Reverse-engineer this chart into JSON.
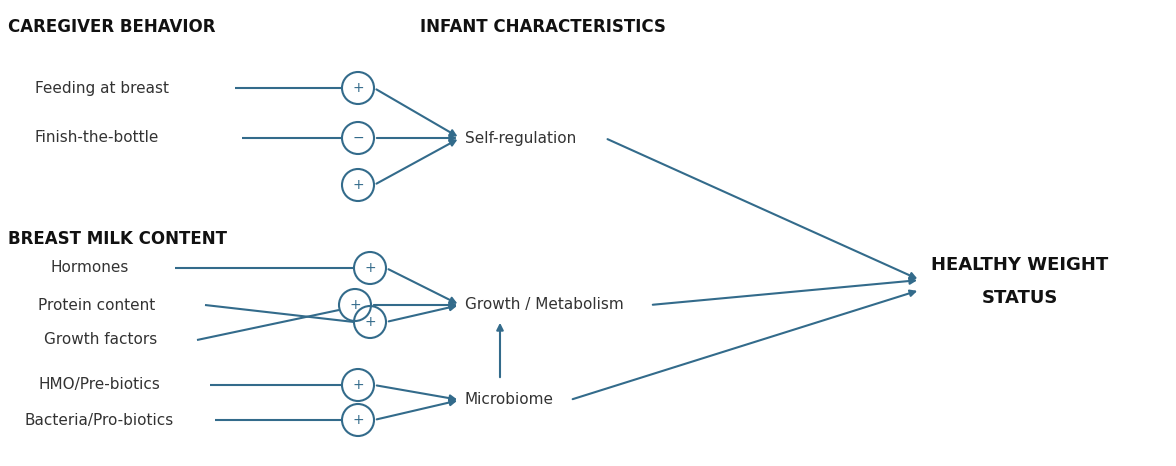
{
  "bg_color": "#ffffff",
  "arrow_color": "#336b8b",
  "text_color": "#333333",
  "bold_color": "#111111",
  "figsize": [
    11.76,
    4.66
  ],
  "dpi": 100,
  "labels": {
    "caregiver_header": "CAREGIVER BEHAVIOR",
    "infant_header": "INFANT CHARACTERISTICS",
    "breast_milk_header": "BREAST MILK CONTENT",
    "feeding": "Feeding at breast",
    "finish": "Finish-the-bottle",
    "hormones": "Hormones",
    "protein": "Protein content",
    "growth_factors": "Growth factors",
    "hmo": "HMO/Pre-biotics",
    "bacteria": "Bacteria/Pro-biotics",
    "self_reg": "Self-regulation",
    "growth_meta": "Growth / Metabolism",
    "microbiome": "Microbiome",
    "healthy_line1": "HEALTHY WEIGHT",
    "healthy_line2": "STATUS"
  }
}
